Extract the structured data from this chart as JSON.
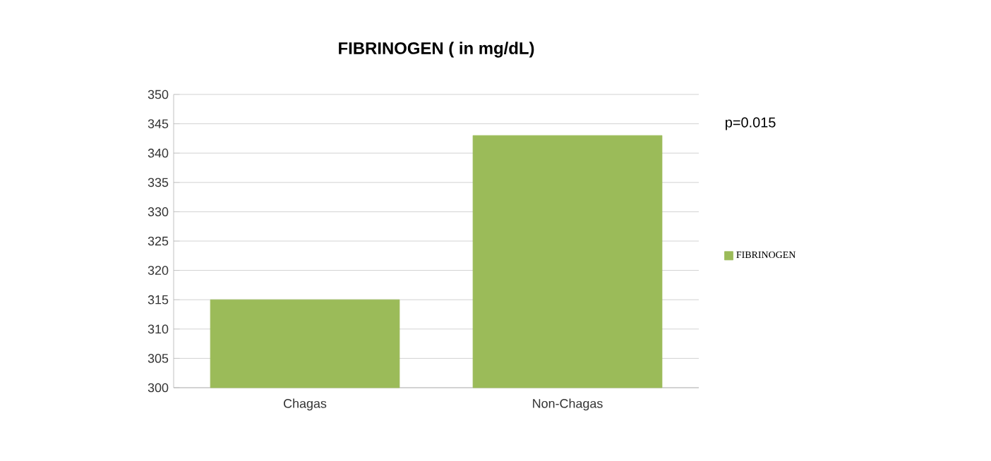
{
  "chart_data": {
    "type": "bar",
    "title": "FIBRINOGEN ( in mg/dL)",
    "categories": [
      "Chagas",
      "Non-Chagas"
    ],
    "series": [
      {
        "name": "FIBRINOGEN",
        "color": "#9bbb59",
        "values": [
          315,
          343
        ]
      }
    ],
    "ylim": [
      300,
      350
    ],
    "yticks": [
      300,
      305,
      310,
      315,
      320,
      325,
      330,
      335,
      340,
      345,
      350
    ],
    "grid": "y",
    "legend": "right",
    "annotations": [
      "p=0.015"
    ]
  }
}
